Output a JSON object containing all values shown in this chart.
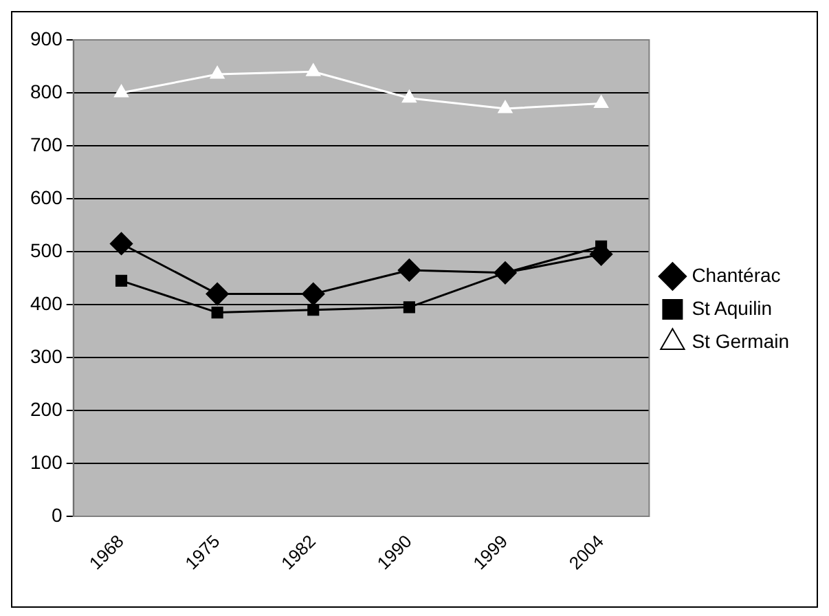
{
  "chart_data": {
    "type": "line",
    "categories": [
      "1968",
      "1975",
      "1982",
      "1990",
      "1999",
      "2004"
    ],
    "series": [
      {
        "name": "Chantérac",
        "color": "#000000",
        "marker": "diamond",
        "values": [
          515,
          420,
          420,
          465,
          460,
          495
        ]
      },
      {
        "name": "St Aquilin",
        "color": "#000000",
        "marker": "square",
        "values": [
          445,
          385,
          390,
          395,
          460,
          510
        ]
      },
      {
        "name": "St Germain",
        "color": "#ffffff",
        "marker": "triangle",
        "values": [
          800,
          835,
          840,
          790,
          770,
          780
        ]
      }
    ],
    "ylim": [
      0,
      900
    ],
    "yticks": [
      0,
      100,
      200,
      300,
      400,
      500,
      600,
      700,
      800,
      900
    ],
    "grid": "y",
    "legend": "right"
  }
}
